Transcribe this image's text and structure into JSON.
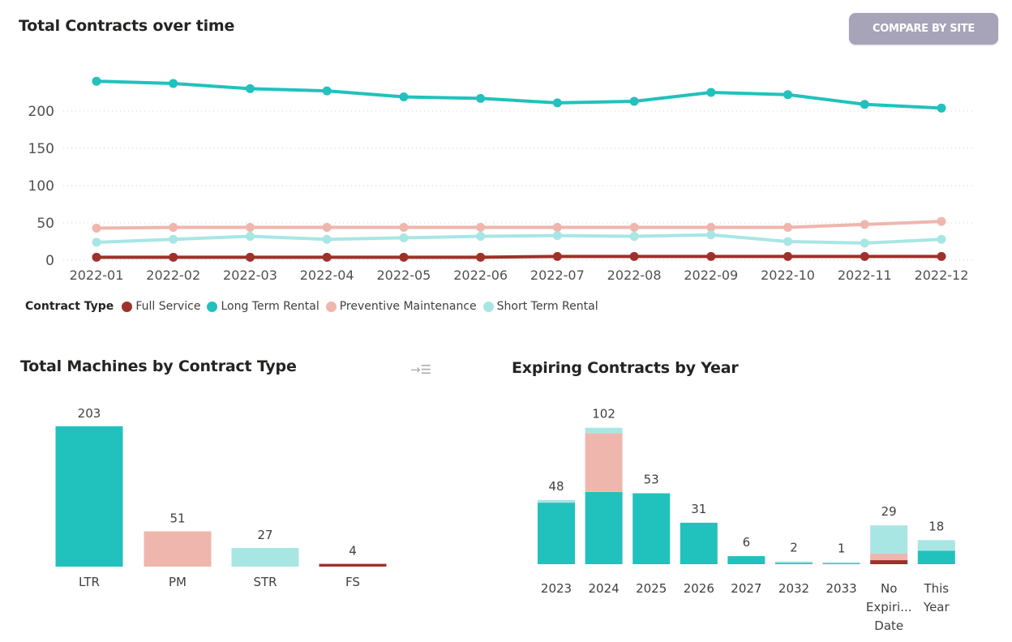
{
  "line_chart": {
    "title": "Total Contracts over time"
  },
  "compare_button": {
    "label": "COMPARE BY SITE"
  },
  "legend": {
    "title": "Contract Type",
    "items": [
      {
        "label": "Full Service",
        "color": "#9e312a"
      },
      {
        "label": "Long Term Rental",
        "color": "#21c1bd"
      },
      {
        "label": "Preventive Maintenance",
        "color": "#efb6ae"
      },
      {
        "label": "Short Term Rental",
        "color": "#a8e6e4"
      }
    ]
  },
  "bar_chart": {
    "title": "Total Machines by Contract Type",
    "focus_icon": "focus-mode-icon"
  },
  "stack_chart": {
    "title": "Expiring Contracts by Year"
  },
  "chart_data": [
    {
      "type": "line",
      "title": "Total Contracts over time",
      "x": [
        "2022-01",
        "2022-02",
        "2022-03",
        "2022-04",
        "2022-05",
        "2022-06",
        "2022-07",
        "2022-08",
        "2022-09",
        "2022-10",
        "2022-11",
        "2022-12"
      ],
      "yticks": [
        0,
        50,
        100,
        150,
        200
      ],
      "ylim": [
        0,
        245
      ],
      "grid": true,
      "legend_position": "bottom-left",
      "series": [
        {
          "name": "Long Term Rental",
          "color": "#21c1bd",
          "values": [
            240,
            237,
            230,
            227,
            219,
            217,
            211,
            213,
            225,
            222,
            209,
            204
          ]
        },
        {
          "name": "Preventive Maintenance",
          "color": "#efb6ae",
          "values": [
            43,
            44,
            44,
            44,
            44,
            44,
            44,
            44,
            44,
            44,
            48,
            52
          ]
        },
        {
          "name": "Short Term Rental",
          "color": "#a8e6e4",
          "values": [
            24,
            28,
            32,
            28,
            30,
            32,
            33,
            32,
            34,
            25,
            23,
            28
          ]
        },
        {
          "name": "Full Service",
          "color": "#9e312a",
          "values": [
            4,
            4,
            4,
            4,
            4,
            4,
            5,
            5,
            5,
            5,
            5,
            5
          ]
        }
      ]
    },
    {
      "type": "bar",
      "title": "Total Machines by Contract Type",
      "categories": [
        "LTR",
        "PM",
        "STR",
        "FS"
      ],
      "values": [
        203,
        51,
        27,
        4
      ],
      "colors": [
        "#21c1bd",
        "#efb6ae",
        "#a8e6e4",
        "#9e312a"
      ]
    },
    {
      "type": "bar",
      "stacked": true,
      "title": "Expiring Contracts by Year",
      "categories": [
        "2023",
        "2024",
        "2025",
        "2026",
        "2027",
        "2032",
        "2033",
        "No Expiri... Date",
        "This Year"
      ],
      "totals": [
        48,
        102,
        53,
        31,
        6,
        2,
        1,
        29,
        18
      ],
      "series": [
        {
          "name": "Long Term Rental",
          "color": "#21c1bd",
          "values": [
            46,
            54,
            53,
            31,
            6,
            1,
            0.5,
            0,
            10
          ]
        },
        {
          "name": "Full Service",
          "color": "#9e312a",
          "values": [
            0,
            0,
            0,
            0,
            0,
            0,
            0,
            3,
            0
          ]
        },
        {
          "name": "Preventive Maintenance",
          "color": "#efb6ae",
          "values": [
            0,
            44,
            0,
            0,
            0,
            0,
            0,
            5,
            0
          ]
        },
        {
          "name": "Short Term Rental",
          "color": "#a8e6e4",
          "values": [
            2,
            4,
            0,
            0,
            0,
            1,
            0.5,
            21,
            8
          ]
        }
      ]
    }
  ]
}
